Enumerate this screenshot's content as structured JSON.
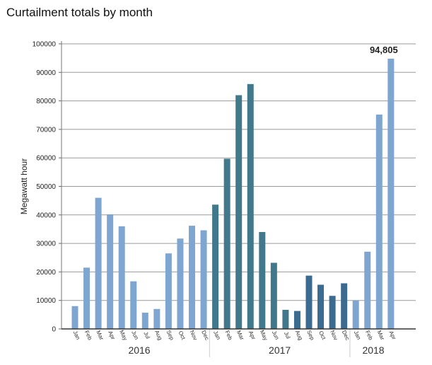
{
  "chart_data": {
    "type": "bar",
    "title": "Curtailment totals by month",
    "xlabel": "",
    "ylabel": "Megawatt hour",
    "ylim": [
      0,
      100000
    ],
    "yticks": [
      "0",
      "10000",
      "20000",
      "30000",
      "40000",
      "50000",
      "60000",
      "70000",
      "80000",
      "90000",
      "100000"
    ],
    "grid": true,
    "groups": [
      {
        "year": "2016",
        "months": [
          "Jan",
          "Feb",
          "Mar",
          "Apr",
          "May",
          "Jun",
          "Jul",
          "Aug",
          "Sep",
          "Oct",
          "Nov",
          "Dec"
        ],
        "values": [
          8000,
          21500,
          46000,
          40200,
          36000,
          16700,
          5700,
          7000,
          26500,
          31700,
          36200,
          34600
        ],
        "colors": [
          "#7fa6d0",
          "#7fa6d0",
          "#7fa6d0",
          "#7fa6d0",
          "#7fa6d0",
          "#7fa6d0",
          "#7fa6d0",
          "#7fa6d0",
          "#7fa6d0",
          "#7fa6d0",
          "#7fa6d0",
          "#7fa6d0"
        ]
      },
      {
        "year": "2017",
        "months": [
          "Jan",
          "Feb",
          "Mar",
          "Apr",
          "May",
          "Jun",
          "Jul",
          "Aug",
          "Sep",
          "Oct",
          "Nov",
          "Dec"
        ],
        "values": [
          43600,
          59700,
          82000,
          85900,
          34000,
          23200,
          6700,
          6300,
          18700,
          15500,
          11600,
          16000
        ],
        "colors": [
          "#41788b",
          "#41788b",
          "#41788b",
          "#41788b",
          "#41788b",
          "#41788b",
          "#41788b",
          "#3d6b8f",
          "#3d6b8f",
          "#3d6b8f",
          "#3d6b8f",
          "#3d6b8f"
        ]
      },
      {
        "year": "2018",
        "months": [
          "Jan",
          "Feb",
          "Mar",
          "Apr"
        ],
        "values": [
          10000,
          27100,
          75200,
          94805
        ],
        "colors": [
          "#7fa6d0",
          "#7fa6d0",
          "#7fa6d0",
          "#7fa6d0"
        ]
      }
    ],
    "annotations": [
      {
        "group": 2,
        "index": 3,
        "text": "94,805"
      }
    ]
  }
}
